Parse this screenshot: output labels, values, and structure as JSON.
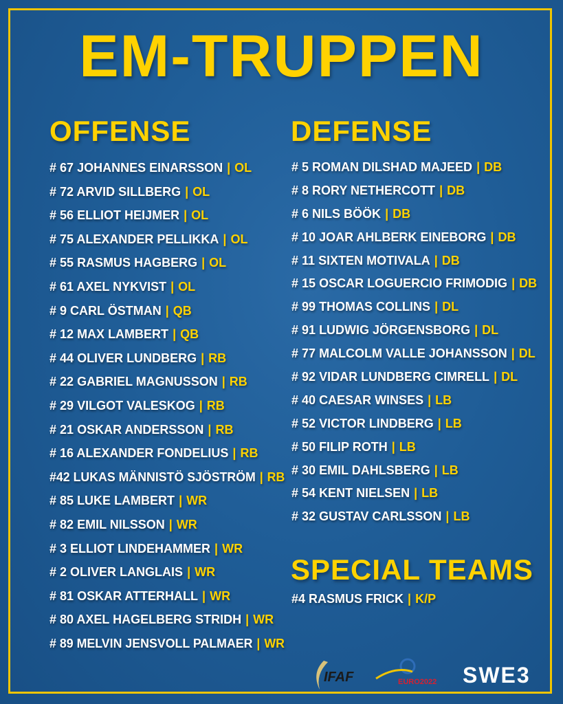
{
  "title": "EM-TRUPPEN",
  "colors": {
    "accent": "#ffd200",
    "background": "#1f5d97",
    "text": "#ffffff"
  },
  "offense": {
    "heading": "OFFENSE",
    "players": [
      {
        "num": "# 67",
        "name": "JOHANNES EINARSSON",
        "pos": "OL"
      },
      {
        "num": "# 72",
        "name": "ARVID SILLBERG",
        "pos": "OL"
      },
      {
        "num": "# 56",
        "name": "ELLIOT HEIJMER",
        "pos": "OL"
      },
      {
        "num": "# 75",
        "name": "ALEXANDER PELLIKKA",
        "pos": "OL"
      },
      {
        "num": "# 55",
        "name": "RASMUS HAGBERG",
        "pos": "OL"
      },
      {
        "num": "# 61",
        "name": "AXEL NYKVIST",
        "pos": "OL"
      },
      {
        "num": "# 9",
        "name": "CARL ÖSTMAN",
        "pos": "QB"
      },
      {
        "num": "# 12",
        "name": "MAX LAMBERT",
        "pos": "QB"
      },
      {
        "num": "# 44",
        "name": "OLIVER LUNDBERG",
        "pos": "RB"
      },
      {
        "num": "# 22",
        "name": "GABRIEL MAGNUSSON",
        "pos": "RB"
      },
      {
        "num": "# 29",
        "name": "VILGOT VALESKOG",
        "pos": "RB"
      },
      {
        "num": "# 21",
        "name": "OSKAR ANDERSSON",
        "pos": "RB"
      },
      {
        "num": "# 16",
        "name": "ALEXANDER FONDELIUS",
        "pos": "RB"
      },
      {
        "num": "#42",
        "name": "LUKAS MÄNNISTÖ SJÖSTRÖM",
        "pos": "RB"
      },
      {
        "num": "# 85",
        "name": "LUKE LAMBERT",
        "pos": "WR"
      },
      {
        "num": "# 82",
        "name": "EMIL NILSSON",
        "pos": "WR"
      },
      {
        "num": "# 3",
        "name": "ELLIOT LINDEHAMMER",
        "pos": "WR"
      },
      {
        "num": "# 2",
        "name": "OLIVER LANGLAIS",
        "pos": "WR"
      },
      {
        "num": "# 81",
        "name": "OSKAR ATTERHALL",
        "pos": "WR"
      },
      {
        "num": "# 80",
        "name": "AXEL HAGELBERG STRIDH",
        "pos": "WR"
      },
      {
        "num": "# 89",
        "name": "MELVIN JENSVOLL PALMAER",
        "pos": "WR"
      }
    ]
  },
  "defense": {
    "heading": "DEFENSE",
    "players": [
      {
        "num": "# 5",
        "name": "ROMAN DILSHAD MAJEED",
        "pos": "DB"
      },
      {
        "num": "# 8",
        "name": "RORY NETHERCOTT",
        "pos": "DB"
      },
      {
        "num": "# 6",
        "name": "NILS BÖÖK",
        "pos": "DB"
      },
      {
        "num": "# 10",
        "name": "JOAR AHLBERK EINEBORG",
        "pos": "DB"
      },
      {
        "num": "# 11",
        "name": "SIXTEN MOTIVALA",
        "pos": "DB"
      },
      {
        "num": "# 15",
        "name": "OSCAR LOGUERCIO FRIMODIG",
        "pos": "DB"
      },
      {
        "num": "# 99",
        "name": "THOMAS COLLINS",
        "pos": "DL"
      },
      {
        "num": "# 91",
        "name": "LUDWIG JÖRGENSBORG",
        "pos": "DL"
      },
      {
        "num": "# 77",
        "name": "MALCOLM VALLE JOHANSSON",
        "pos": "DL"
      },
      {
        "num": "# 92",
        "name": "VIDAR LUNDBERG CIMRELL",
        "pos": "DL"
      },
      {
        "num": "# 40",
        "name": "CAESAR WINSES",
        "pos": "LB"
      },
      {
        "num": "# 52",
        "name": "VICTOR LINDBERG",
        "pos": "LB"
      },
      {
        "num": "# 50",
        "name": "FILIP ROTH",
        "pos": "LB"
      },
      {
        "num": "# 30",
        "name": "EMIL DAHLSBERG",
        "pos": "LB"
      },
      {
        "num": "# 54",
        "name": "KENT NIELSEN",
        "pos": "LB"
      },
      {
        "num": "# 32",
        "name": "GUSTAV CARLSSON",
        "pos": "LB"
      }
    ]
  },
  "special_teams": {
    "heading": "SPECIAL TEAMS",
    "players": [
      {
        "num": "#4",
        "name": "RASMUS FRICK",
        "pos": "K/P"
      }
    ]
  },
  "logos": {
    "ifaf": "IFAF",
    "euro": "EURO 2022",
    "swe": "SWE"
  }
}
